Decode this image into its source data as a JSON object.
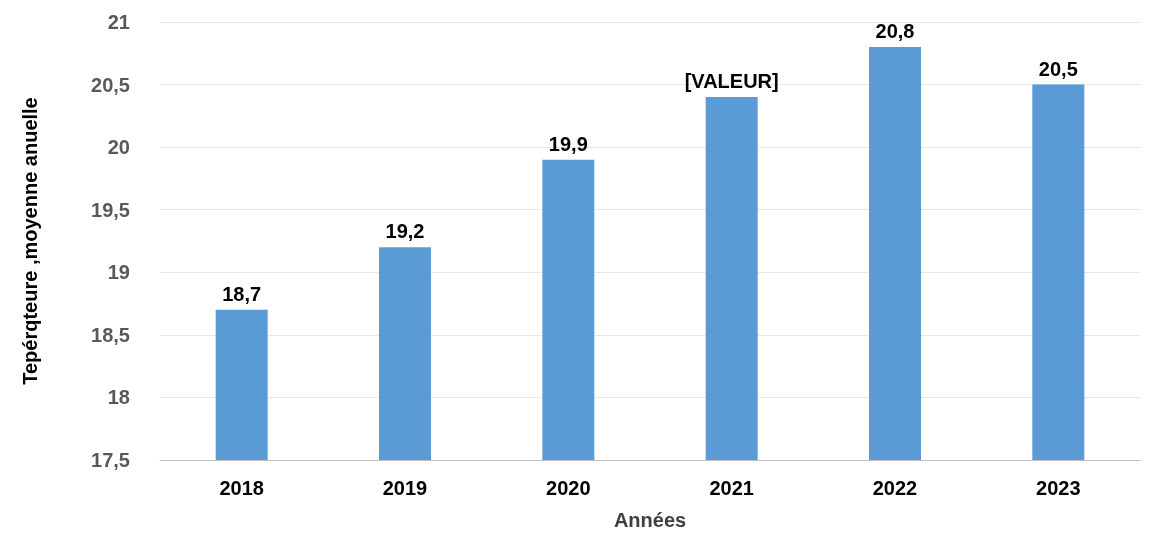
{
  "chart_data": {
    "type": "bar",
    "xlabel": "Années",
    "ylabel": "Tepérqteure ,moyenne anuelle",
    "categories": [
      "2018",
      "2019",
      "2020",
      "2021",
      "2022",
      "2023"
    ],
    "values": [
      18.7,
      19.2,
      19.9,
      20.4,
      20.8,
      20.5
    ],
    "value_labels": [
      "18,7",
      "19,2",
      "19,9",
      "[VALEUR]",
      "20,8",
      "20,5"
    ],
    "color": "#5b9bd5",
    "ylim": [
      17.5,
      21
    ],
    "yticks": [
      {
        "value": 17.5,
        "label": "17,5"
      },
      18,
      {
        "value": 18.5,
        "label": "18,5"
      },
      19,
      {
        "value": 19.5,
        "label": "19,5"
      },
      20,
      {
        "value": 20.5,
        "label": "20,5"
      },
      21
    ],
    "grid": "y"
  }
}
